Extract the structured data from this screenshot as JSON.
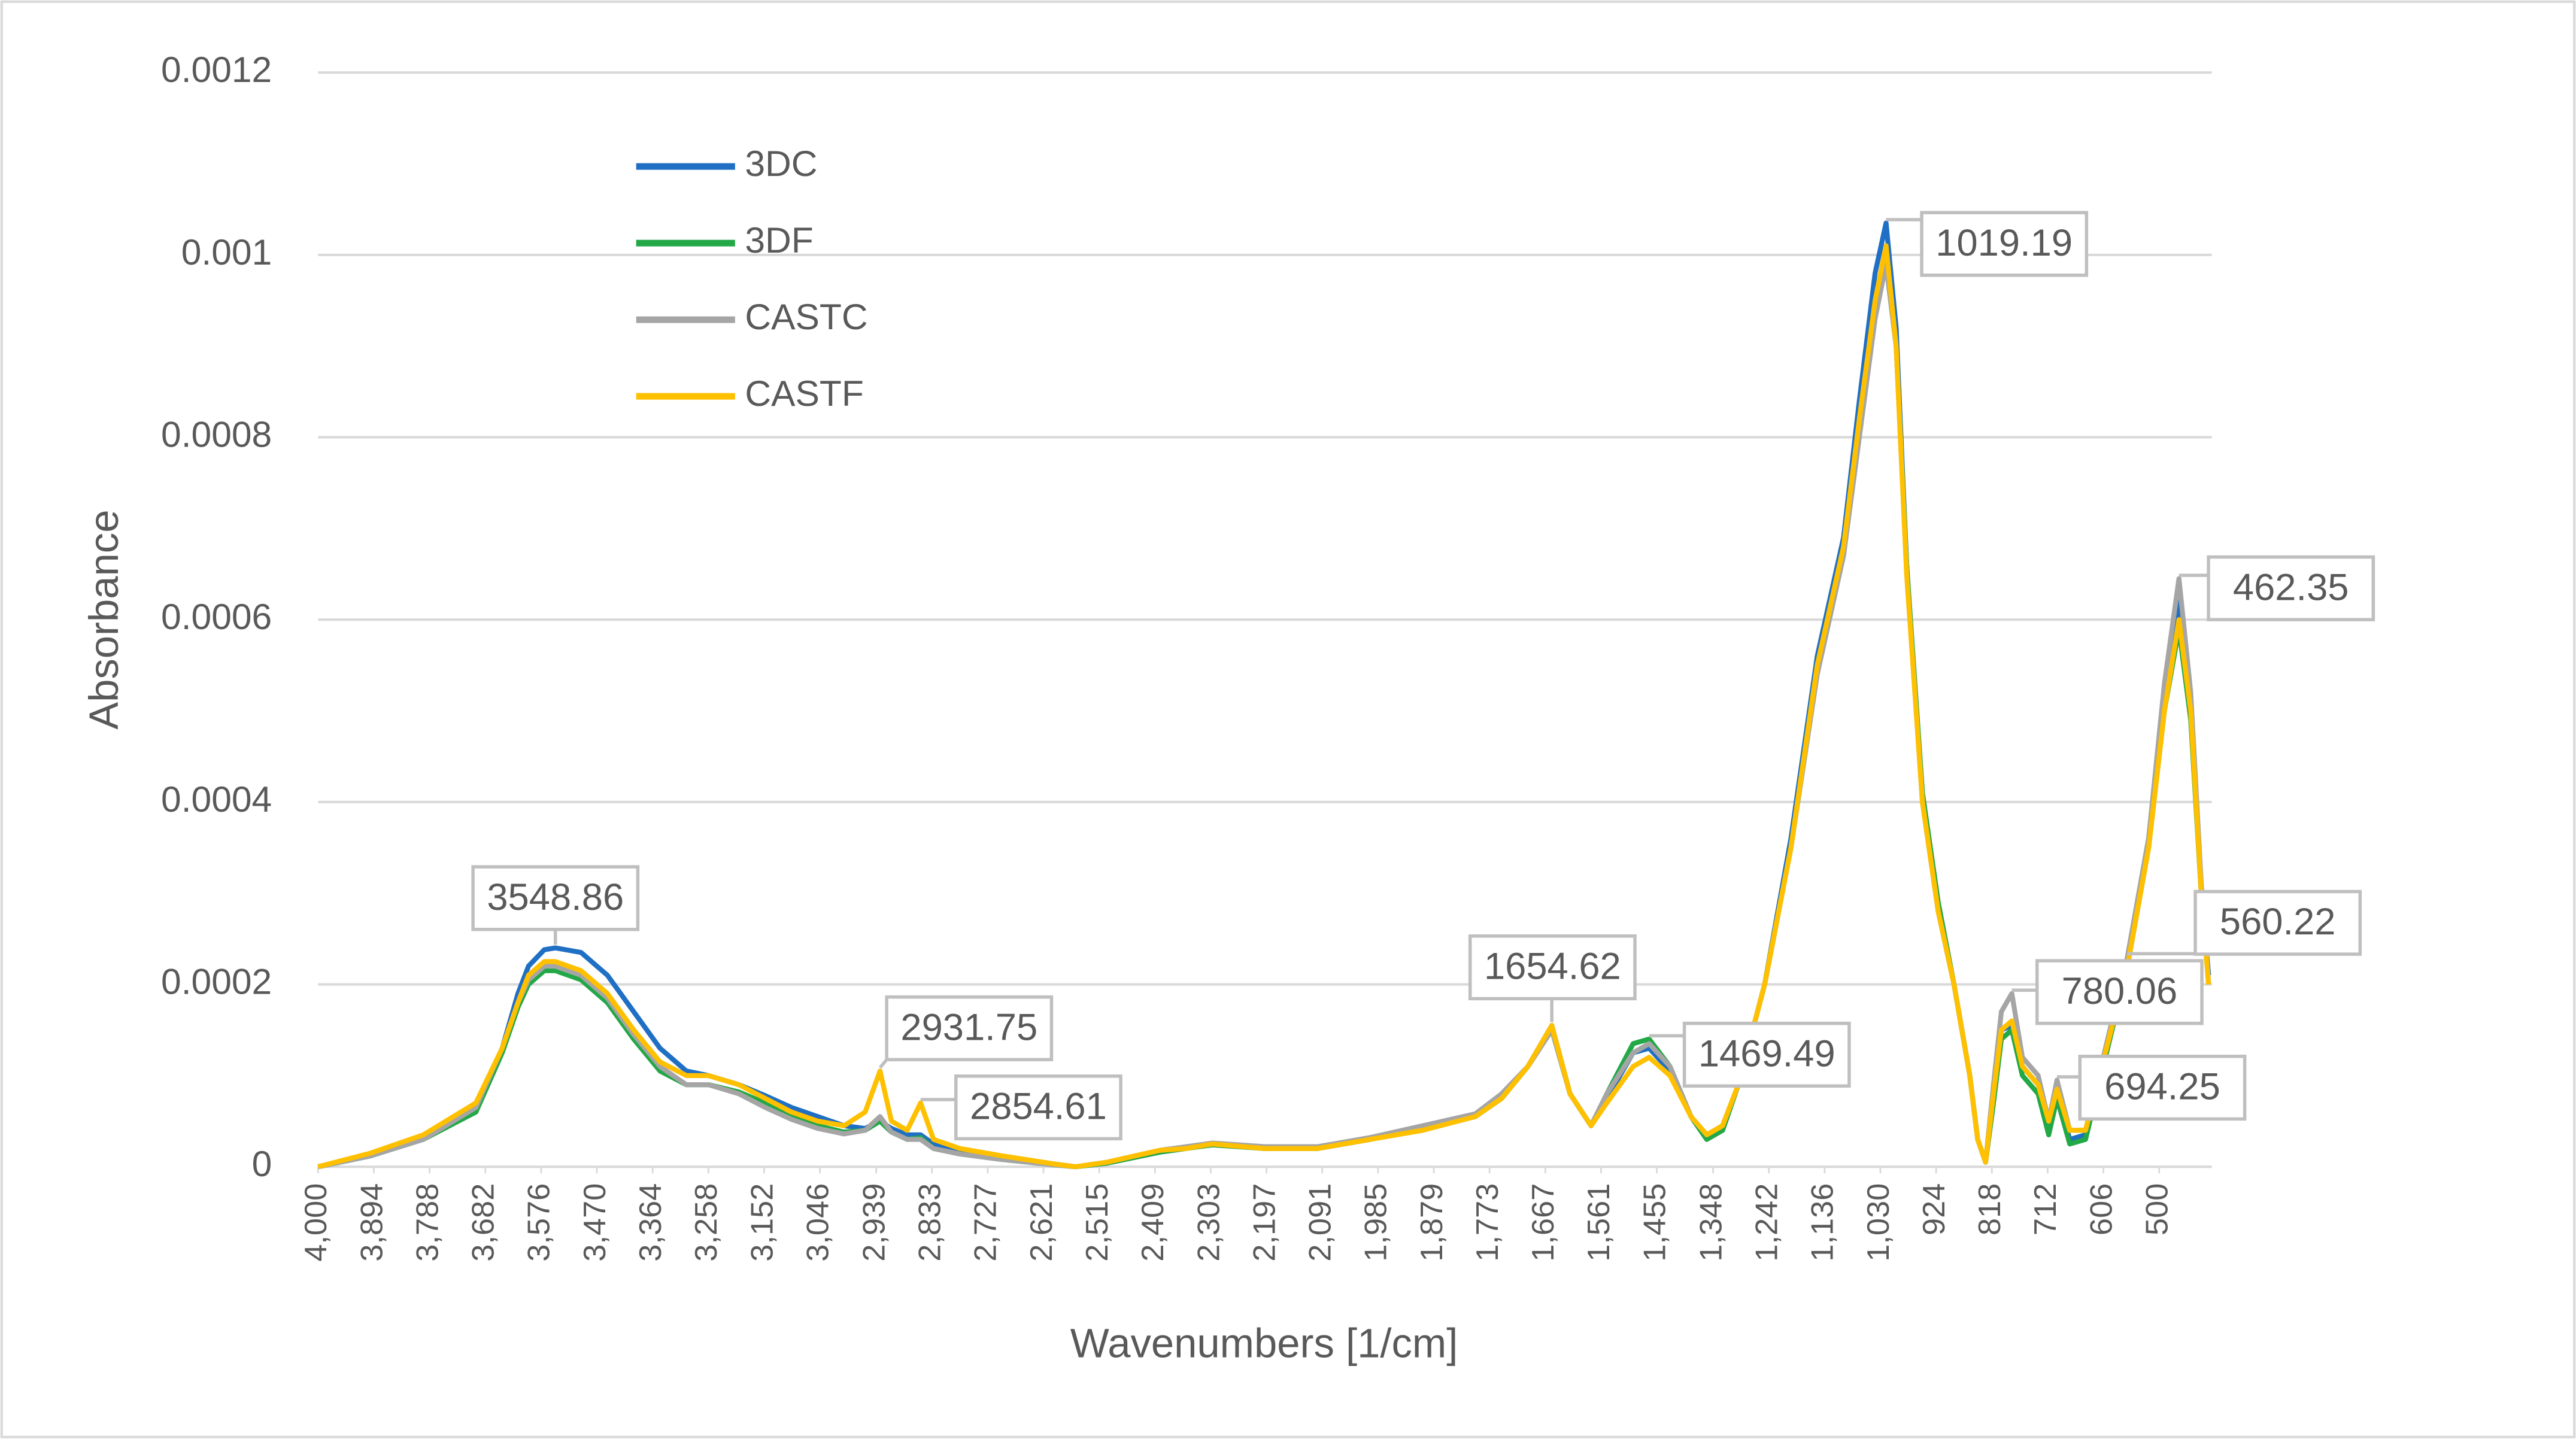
{
  "chart_data": {
    "type": "line",
    "x_label": "Wavenumbers [1/cm]",
    "y_label": "Absorbance",
    "xlim": [
      4000,
      400
    ],
    "ylim": [
      0,
      0.0012
    ],
    "yticks": [
      0,
      0.0002,
      0.0004,
      0.0006,
      0.0008,
      0.001,
      0.0012
    ],
    "xticks": [
      {
        "value": 4000,
        "label": "4,000"
      },
      {
        "value": 3894,
        "label": "3,894"
      },
      {
        "value": 3788,
        "label": "3,788"
      },
      {
        "value": 3682,
        "label": "3,682"
      },
      {
        "value": 3576,
        "label": "3,576"
      },
      {
        "value": 3470,
        "label": "3,470"
      },
      {
        "value": 3364,
        "label": "3,364"
      },
      {
        "value": 3258,
        "label": "3,258"
      },
      {
        "value": 3152,
        "label": "3,152"
      },
      {
        "value": 3046,
        "label": "3,046"
      },
      {
        "value": 2939,
        "label": "2,939"
      },
      {
        "value": 2833,
        "label": "2,833"
      },
      {
        "value": 2727,
        "label": "2,727"
      },
      {
        "value": 2621,
        "label": "2,621"
      },
      {
        "value": 2515,
        "label": "2,515"
      },
      {
        "value": 2409,
        "label": "2,409"
      },
      {
        "value": 2303,
        "label": "2,303"
      },
      {
        "value": 2197,
        "label": "2,197"
      },
      {
        "value": 2091,
        "label": "2,091"
      },
      {
        "value": 1985,
        "label": "1,985"
      },
      {
        "value": 1879,
        "label": "1,879"
      },
      {
        "value": 1773,
        "label": "1,773"
      },
      {
        "value": 1667,
        "label": "1,667"
      },
      {
        "value": 1561,
        "label": "1,561"
      },
      {
        "value": 1455,
        "label": "1,455"
      },
      {
        "value": 1348,
        "label": "1,348"
      },
      {
        "value": 1242,
        "label": "1,242"
      },
      {
        "value": 1136,
        "label": "1,136"
      },
      {
        "value": 1030,
        "label": "1,030"
      },
      924,
      818,
      712,
      606,
      500
    ],
    "grid": true,
    "legend": "upper left",
    "x": [
      4000,
      3900,
      3800,
      3700,
      3650,
      3620,
      3600,
      3570,
      3548.86,
      3500,
      3450,
      3400,
      3350,
      3300,
      3258,
      3200,
      3150,
      3100,
      3050,
      3000,
      2960,
      2931.75,
      2910,
      2880,
      2854.61,
      2830,
      2780,
      2700,
      2600,
      2560,
      2500,
      2400,
      2350,
      2300,
      2200,
      2100,
      2000,
      1900,
      1800,
      1750,
      1700,
      1654.62,
      1620,
      1580,
      1550,
      1500,
      1469.49,
      1430,
      1390,
      1360,
      1330,
      1300,
      1250,
      1200,
      1150,
      1100,
      1070,
      1040,
      1019.19,
      1000,
      980,
      950,
      920,
      890,
      860,
      845,
      830,
      815,
      800,
      780.06,
      760,
      730,
      710,
      694.25,
      670,
      640,
      600,
      560.22,
      520,
      490,
      462.35,
      440,
      420,
      406
    ],
    "series": [
      {
        "name": "3DC",
        "color": "#1f6fc5",
        "values": [
          0,
          1.2e-05,
          3e-05,
          6.5e-05,
          0.00013,
          0.00019,
          0.00022,
          0.000238,
          0.00024,
          0.000235,
          0.00021,
          0.00017,
          0.00013,
          0.000105,
          0.0001,
          9e-05,
          7.8e-05,
          6.5e-05,
          5.5e-05,
          4.5e-05,
          4.2e-05,
          5e-05,
          4.2e-05,
          3.5e-05,
          3.5e-05,
          2.5e-05,
          1.8e-05,
          1e-05,
          3e-06,
          0,
          4e-06,
          1.6e-05,
          2e-05,
          2.5e-05,
          2e-05,
          2e-05,
          3e-05,
          4.2e-05,
          5.5e-05,
          7.5e-05,
          0.00011,
          0.000155,
          8e-05,
          4.5e-05,
          7.5e-05,
          0.000125,
          0.00013,
          0.000105,
          5.5e-05,
          3e-05,
          4e-05,
          9e-05,
          0.0002,
          0.00036,
          0.00056,
          0.00069,
          0.00084,
          0.00098,
          0.001035,
          0.00092,
          0.00066,
          0.0004,
          0.00028,
          0.0002,
          0.0001,
          3e-05,
          5e-06,
          7.5e-05,
          0.00015,
          0.000155,
          0.00011,
          9e-05,
          4.5e-05,
          8e-05,
          3e-05,
          3.5e-05,
          0.00013,
          0.00023,
          0.00036,
          0.00052,
          0.00062,
          0.0005,
          0.0003,
          0.00021
        ]
      },
      {
        "name": "3DF",
        "color": "#22a846",
        "values": [
          0,
          1.2e-05,
          3e-05,
          6e-05,
          0.000125,
          0.000175,
          0.0002,
          0.000215,
          0.000215,
          0.000205,
          0.00018,
          0.00014,
          0.000105,
          9e-05,
          9e-05,
          8.2e-05,
          7e-05,
          5.5e-05,
          4.5e-05,
          3.8e-05,
          4e-05,
          5e-05,
          3.8e-05,
          3e-05,
          3.2e-05,
          2e-05,
          1.4e-05,
          8e-06,
          2e-06,
          0,
          4e-06,
          1.6e-05,
          2e-05,
          2.4e-05,
          2e-05,
          2e-05,
          3e-05,
          4.2e-05,
          5.5e-05,
          7.5e-05,
          0.00011,
          0.00015,
          8e-05,
          4.5e-05,
          8e-05,
          0.000135,
          0.00014,
          0.00011,
          5.5e-05,
          3e-05,
          4e-05,
          9e-05,
          0.0002,
          0.00035,
          0.00055,
          0.00068,
          0.00081,
          0.00094,
          0.00099,
          0.0009,
          0.00066,
          0.00041,
          0.00029,
          0.0002,
          0.0001,
          3e-05,
          5e-06,
          7e-05,
          0.00014,
          0.00015,
          0.0001,
          8e-05,
          3.5e-05,
          7.5e-05,
          2.5e-05,
          3e-05,
          0.000125,
          0.00022,
          0.00035,
          0.0005,
          0.00059,
          0.00049,
          0.0003,
          0.0002
        ]
      },
      {
        "name": "CASTC",
        "color": "#a5a5a5",
        "values": [
          0,
          1.2e-05,
          3e-05,
          6.5e-05,
          0.00013,
          0.00018,
          0.000205,
          0.00022,
          0.00022,
          0.00021,
          0.000185,
          0.000145,
          0.00011,
          9e-05,
          9e-05,
          8e-05,
          6.5e-05,
          5.2e-05,
          4.2e-05,
          3.6e-05,
          4e-05,
          5.5e-05,
          3.8e-05,
          3e-05,
          3e-05,
          2e-05,
          1.4e-05,
          8e-06,
          2e-06,
          0,
          5e-06,
          1.8e-05,
          2.2e-05,
          2.6e-05,
          2.2e-05,
          2.2e-05,
          3.2e-05,
          4.5e-05,
          5.8e-05,
          8e-05,
          0.00011,
          0.00015,
          8e-05,
          4.5e-05,
          8e-05,
          0.000125,
          0.000135,
          0.00011,
          5.5e-05,
          3.5e-05,
          4.5e-05,
          9e-05,
          0.0002,
          0.00035,
          0.00054,
          0.00067,
          0.0008,
          0.00093,
          0.00099,
          0.0009,
          0.00065,
          0.0004,
          0.00028,
          0.0002,
          0.0001,
          3e-05,
          5e-06,
          9e-05,
          0.00017,
          0.00019,
          0.00012,
          0.0001,
          5e-05,
          9.5e-05,
          4e-05,
          4e-05,
          0.000135,
          0.00023,
          0.00036,
          0.00053,
          0.000645,
          0.00052,
          0.00031,
          0.0002
        ]
      },
      {
        "name": "CASTF",
        "color": "#ffc000",
        "values": [
          0,
          1.5e-05,
          3.5e-05,
          7e-05,
          0.00013,
          0.00018,
          0.00021,
          0.000225,
          0.000225,
          0.000215,
          0.00019,
          0.00015,
          0.000115,
          0.0001,
          0.0001,
          9e-05,
          7.5e-05,
          6e-05,
          5e-05,
          4.5e-05,
          6e-05,
          0.000105,
          5e-05,
          4e-05,
          7e-05,
          3e-05,
          2e-05,
          1.2e-05,
          3e-06,
          0,
          5e-06,
          1.8e-05,
          2e-05,
          2.5e-05,
          2e-05,
          2e-05,
          3e-05,
          4e-05,
          5.5e-05,
          7.5e-05,
          0.00011,
          0.000155,
          8e-05,
          4.5e-05,
          7e-05,
          0.00011,
          0.00012,
          0.0001,
          5.5e-05,
          3.5e-05,
          4.5e-05,
          9e-05,
          0.0002,
          0.00035,
          0.00055,
          0.00068,
          0.00082,
          0.00095,
          0.00101,
          0.0009,
          0.00065,
          0.0004,
          0.00028,
          0.0002,
          0.0001,
          3e-05,
          5e-06,
          8e-05,
          0.00015,
          0.00016,
          0.00011,
          9e-05,
          5e-05,
          8.5e-05,
          4e-05,
          4e-05,
          0.00013,
          0.00022,
          0.00035,
          0.0005,
          0.0006,
          0.0005,
          0.0003,
          0.0002
        ]
      }
    ],
    "annotations": [
      3548.86,
      2931.75,
      2854.61,
      1654.62,
      1469.49,
      1019.19,
      462.35,
      780.06,
      560.22,
      694.25
    ]
  }
}
